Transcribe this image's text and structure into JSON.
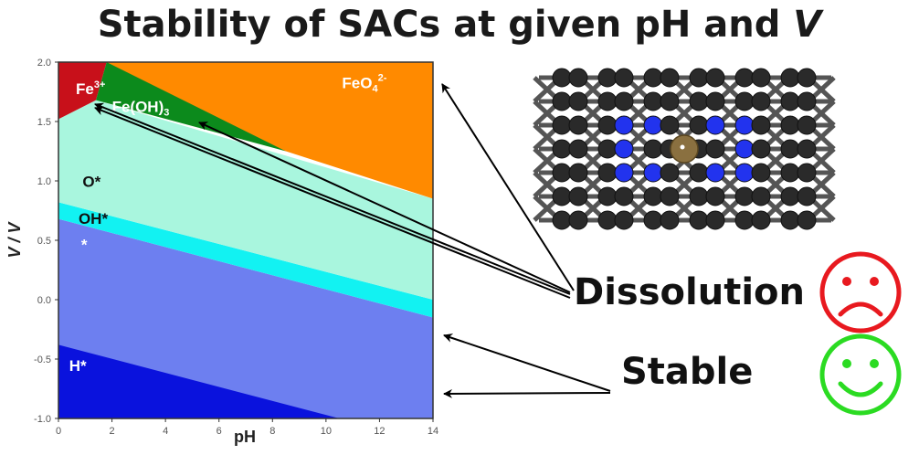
{
  "title": {
    "main": "Stability of SACs at given pH and ",
    "italic": "V"
  },
  "chart_data": {
    "type": "area",
    "xlabel": "pH",
    "ylabel": "V / V",
    "xlim": [
      0,
      14
    ],
    "ylim": [
      -1.0,
      2.0
    ],
    "x_ticks": [
      0,
      2,
      4,
      6,
      8,
      10,
      12,
      14
    ],
    "y_ticks": [
      "-1.0",
      "-0.5",
      "0.0",
      "0.5",
      "1.0",
      "1.5",
      "2.0"
    ],
    "regions": [
      {
        "name": "*",
        "color": "#6d7ff0",
        "polygon": [
          [
            0,
            -1.0
          ],
          [
            14,
            -1.0
          ],
          [
            14,
            -0.15
          ],
          [
            0,
            0.68
          ]
        ]
      },
      {
        "name": "H*",
        "color": "#0a12dd",
        "polygon": [
          [
            0,
            -1.0
          ],
          [
            10.5,
            -1.0
          ],
          [
            0,
            -0.38
          ]
        ]
      },
      {
        "name": "OH*",
        "color": "#12f2f2",
        "polygon": [
          [
            0,
            0.68
          ],
          [
            14,
            -0.15
          ],
          [
            14,
            0.0
          ],
          [
            0,
            0.82
          ]
        ]
      },
      {
        "name": "O*",
        "color": "#a9f6de",
        "polygon": [
          [
            0,
            0.82
          ],
          [
            14,
            0.0
          ],
          [
            14,
            0.85
          ],
          [
            1.4,
            1.68
          ],
          [
            0,
            1.52
          ]
        ]
      },
      {
        "name": "Fe3+",
        "color": "#c8101a",
        "polygon": [
          [
            0,
            1.52
          ],
          [
            1.4,
            1.68
          ],
          [
            1.8,
            2.0
          ],
          [
            0,
            2.0
          ]
        ]
      },
      {
        "name": "Fe(OH)3",
        "color": "#0c8a1c",
        "polygon": [
          [
            1.4,
            1.68
          ],
          [
            1.8,
            2.0
          ],
          [
            4.0,
            2.0
          ],
          [
            8.5,
            1.25
          ]
        ]
      },
      {
        "name": "FeO4 2-",
        "color": "#ff8a00",
        "polygon": [
          [
            1.8,
            2.0
          ],
          [
            14,
            2.0
          ],
          [
            14,
            0.85
          ],
          [
            8.5,
            1.25
          ]
        ]
      }
    ],
    "labels": [
      {
        "name": "fe3",
        "text": "Fe",
        "sup": "3+",
        "x": 0.65,
        "y": 1.73,
        "color": "#ffffff"
      },
      {
        "name": "feoh3",
        "text": "Fe(OH)",
        "sub": "3",
        "x": 2.0,
        "y": 1.58,
        "color": "#ffffff"
      },
      {
        "name": "feo4",
        "text": "FeO",
        "sub": "4",
        "sup": "2-",
        "x": 10.6,
        "y": 1.78,
        "color": "#ffffff"
      },
      {
        "name": "o-star",
        "text": "O*",
        "x": 0.9,
        "y": 0.95,
        "color": "#111111"
      },
      {
        "name": "oh-star",
        "text": "OH*",
        "x": 0.75,
        "y": 0.64,
        "color": "#111111"
      },
      {
        "name": "star",
        "text": "*",
        "x": 0.85,
        "y": 0.42,
        "color": "#ffffff"
      },
      {
        "name": "h-star",
        "text": "H*",
        "x": 0.4,
        "y": -0.6,
        "color": "#ffffff"
      }
    ]
  },
  "annotations": {
    "dissolution": "Dissolution",
    "stable": "Stable",
    "sad_color": "#e8191f",
    "happy_color": "#2bdb22",
    "carbon_color": "#2a2a2a",
    "nitrogen_color": "#2233ee",
    "iron_color": "#8a7040"
  }
}
